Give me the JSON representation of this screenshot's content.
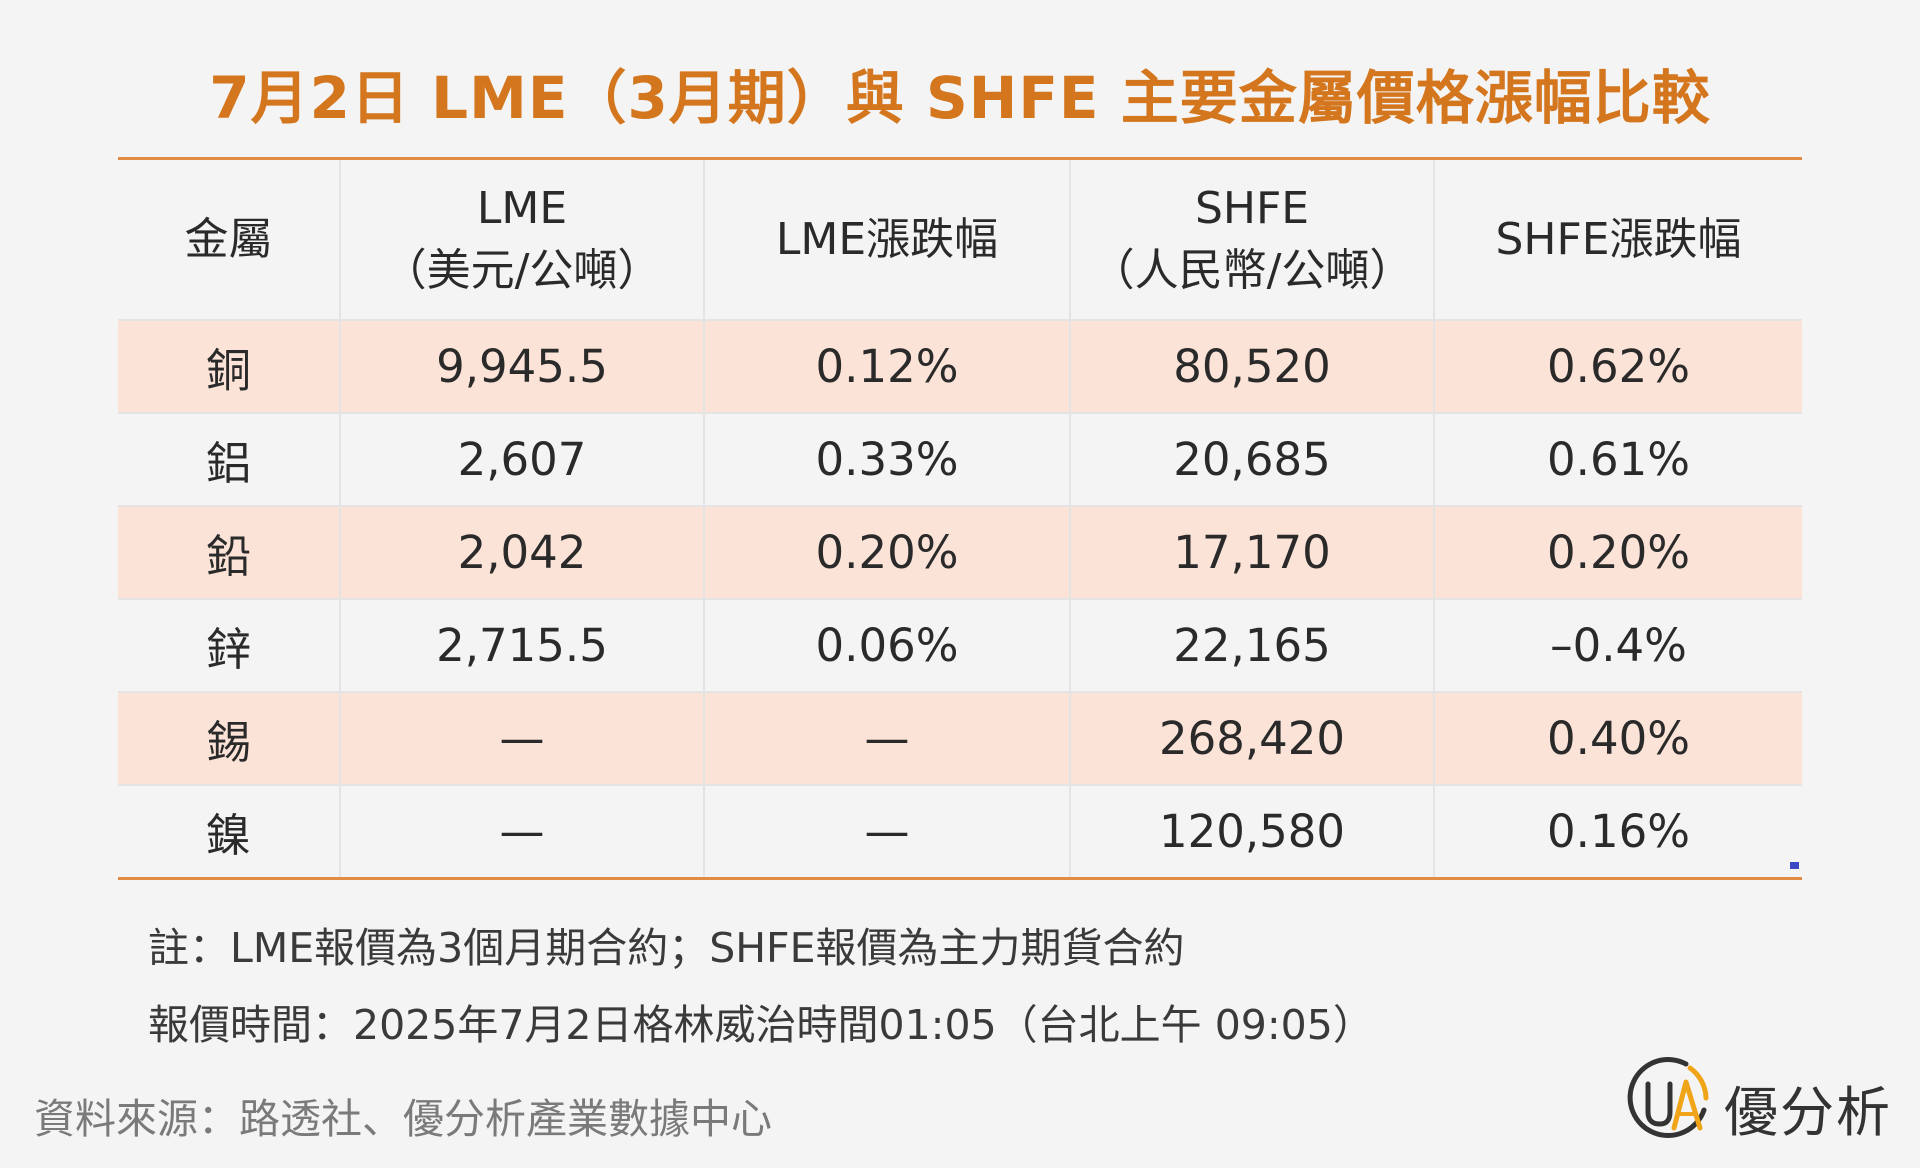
{
  "title": "7月2日 LME（3月期）與 SHFE 主要金屬價格漲幅比較",
  "table": {
    "headers": [
      {
        "line1": "金屬",
        "line2": ""
      },
      {
        "line1": "LME",
        "line2": "（美元/公噸）"
      },
      {
        "line1": "LME漲跌幅",
        "line2": ""
      },
      {
        "line1": "SHFE",
        "line2": "（人民幣/公噸）"
      },
      {
        "line1": "SHFE漲跌幅",
        "line2": ""
      }
    ],
    "rows": [
      {
        "metal": "銅",
        "lme": "9,945.5",
        "lme_change": "0.12%",
        "shfe": "80,520",
        "shfe_change": "0.62%"
      },
      {
        "metal": "鋁",
        "lme": "2,607",
        "lme_change": "0.33%",
        "shfe": "20,685",
        "shfe_change": "0.61%"
      },
      {
        "metal": "鉛",
        "lme": "2,042",
        "lme_change": "0.20%",
        "shfe": "17,170",
        "shfe_change": "0.20%"
      },
      {
        "metal": "鋅",
        "lme": "2,715.5",
        "lme_change": "0.06%",
        "shfe": "22,165",
        "shfe_change": "–0.4%"
      },
      {
        "metal": "錫",
        "lme": "—",
        "lme_change": "—",
        "shfe": "268,420",
        "shfe_change": "0.40%"
      },
      {
        "metal": "鎳",
        "lme": "—",
        "lme_change": "—",
        "shfe": "120,580",
        "shfe_change": "0.16%"
      }
    ]
  },
  "notes": {
    "line1": "註：LME報價為3個月期合約；SHFE報價為主力期貨合約",
    "line2": "報價時間：2025年7月2日格林威治時間01:05（台北上午 09:05）"
  },
  "source": "資料來源：路透社、優分析產業數據中心",
  "brand": {
    "name": "優分析",
    "icon": "ua-logo-icon",
    "accent_color": "#f0a418"
  },
  "colors": {
    "title": "#d4761e",
    "rule": "#e08a43",
    "row_shade": "#fbe3d7"
  }
}
